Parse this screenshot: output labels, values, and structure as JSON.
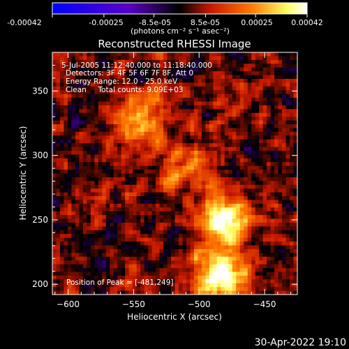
{
  "chart_data": {
    "type": "heatmap",
    "title": "Reconstructed RHESSI Image",
    "xlabel": "Heliocentric X (arcsec)",
    "ylabel": "Heliocentric Y (arcsec)",
    "xlim": [
      -612,
      -425
    ],
    "ylim": [
      192,
      380
    ],
    "xticks": [
      -600,
      -550,
      -500,
      -450
    ],
    "yticks": [
      200,
      250,
      300,
      350
    ],
    "colorbar": {
      "range": [
        -0.00042,
        0.00042
      ],
      "ticks": [
        "-0.00042",
        "-0.00025",
        "-8.5e-05",
        "8.5e-05",
        "0.00025",
        "0.00042"
      ],
      "tick_values": [
        -0.00042,
        -0.00025,
        -8.5e-05,
        8.5e-05,
        0.00025,
        0.00042
      ],
      "unit_label": "(photons cm⁻² s⁻¹ asec⁻²)",
      "colors": [
        "#0000ff",
        "#5a00c8",
        "#000000",
        "#c81800",
        "#ff7800",
        "#ffff64",
        "#ffffff"
      ]
    },
    "annotations": [
      "5-Jul-2005 11:12:40.000 to 11:18:40.000",
      "Detectors: 3F 4F 5F 6F 7F 8F, Att 0",
      "Energy Range: 12.0 - 25.0 keV",
      "Clean     Total counts: 9.09E+03"
    ],
    "peak_label": "Position of Peak = [-481,249]",
    "sources": [
      {
        "x": -481,
        "y": 249,
        "value": 1.0
      },
      {
        "x": -485,
        "y": 207,
        "value": 0.95
      },
      {
        "x": -545,
        "y": 328,
        "value": 0.62
      },
      {
        "x": -510,
        "y": 290,
        "value": 0.45
      }
    ]
  },
  "footer": {
    "timestamp": "30-Apr-2022 19:10"
  }
}
